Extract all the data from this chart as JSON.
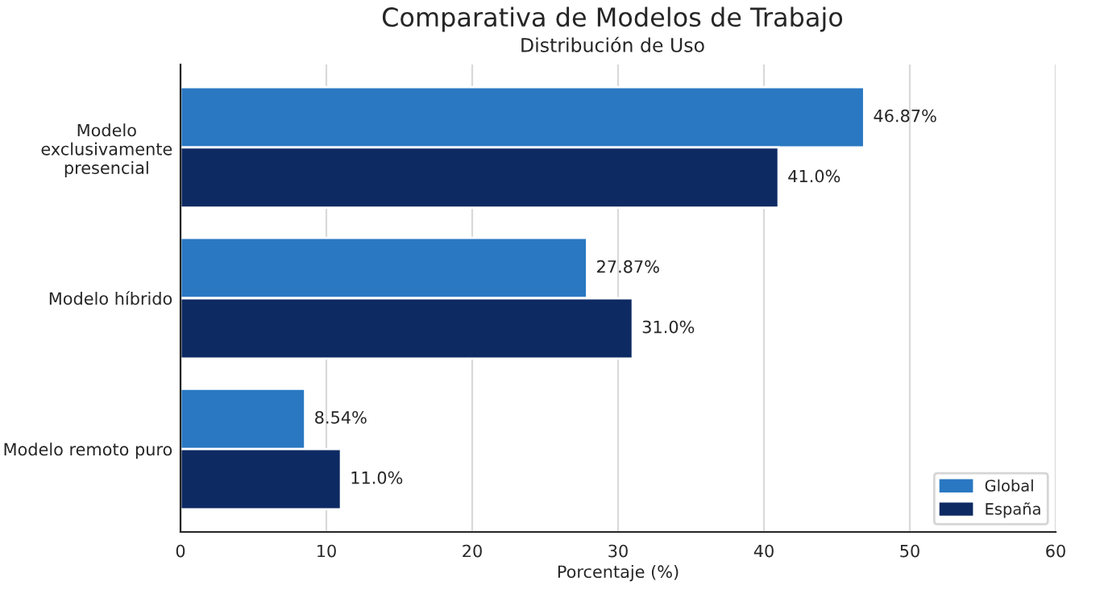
{
  "chart_data": {
    "type": "bar",
    "orientation": "horizontal",
    "title": "Comparativa de Modelos de Trabajo",
    "subtitle": "Distribución de Uso",
    "xlabel": "Porcentaje (%)",
    "categories": [
      "Modelo\nexclusivamente\npresencial",
      "Modelo híbrido",
      "Modelo remoto puro"
    ],
    "series": [
      {
        "name": "Global",
        "color": "#2a78c2",
        "values": [
          46.87,
          27.87,
          8.54
        ],
        "value_labels": [
          "46.87%",
          "27.87%",
          "8.54%"
        ]
      },
      {
        "name": "España",
        "color": "#0e2a63",
        "values": [
          41.0,
          31.0,
          11.0
        ],
        "value_labels": [
          "41.0%",
          "31.0%",
          "11.0%"
        ]
      }
    ],
    "xlim": [
      0,
      60
    ],
    "xticks": [
      0,
      10,
      20,
      30,
      40,
      50,
      60
    ],
    "grid": "x",
    "legend": "bottom right"
  }
}
